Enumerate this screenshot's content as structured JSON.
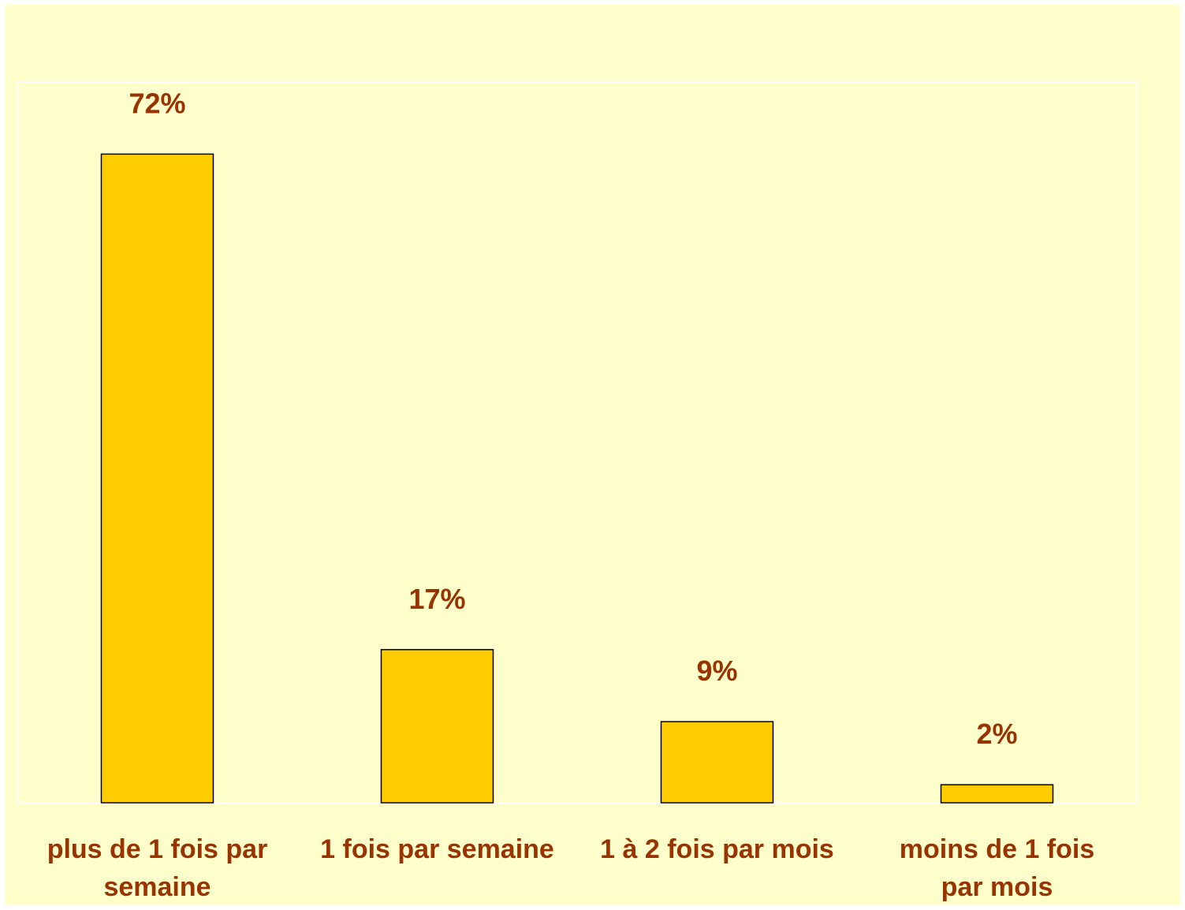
{
  "chart_data": {
    "type": "bar",
    "categories": [
      "plus de 1 fois par semaine",
      "1 fois par semaine",
      "1 à 2 fois par mois",
      "moins de 1 fois par mois"
    ],
    "values": [
      72,
      17,
      9,
      2
    ],
    "value_labels": [
      "72%",
      "17%",
      "9%",
      "2%"
    ],
    "color": "#ffcc00",
    "ylim": [
      0,
      80
    ]
  }
}
